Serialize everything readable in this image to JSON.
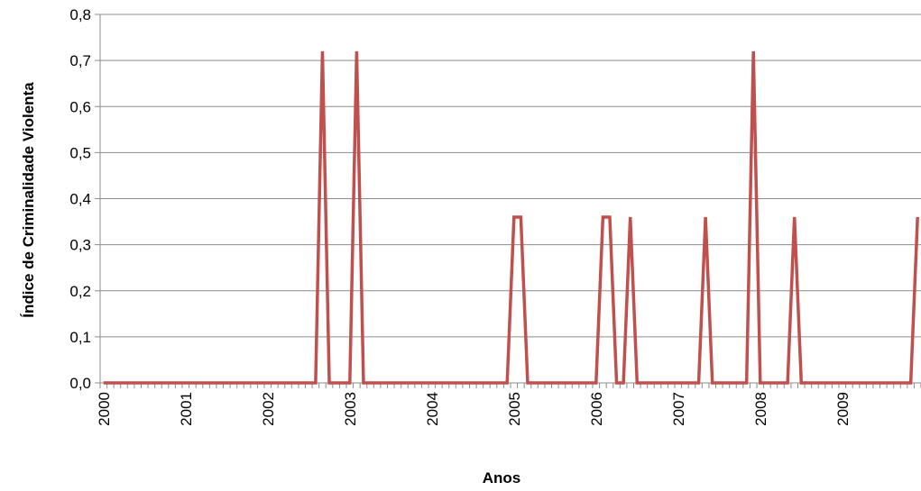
{
  "chart_data": {
    "type": "line",
    "title": "",
    "xlabel": "Anos",
    "ylabel": "Índice de Criminalidade Violenta",
    "ylim": [
      0,
      0.8
    ],
    "yticks": [
      "0,0",
      "0,1",
      "0,2",
      "0,3",
      "0,4",
      "0,5",
      "0,6",
      "0,7",
      "0,8"
    ],
    "x_tick_labels": [
      "2000",
      "2001",
      "2002",
      "2003",
      "2004",
      "2005",
      "2006",
      "2007",
      "2008",
      "2009"
    ],
    "x_unit": "month",
    "grid": true,
    "legend": "none",
    "series": [
      {
        "color": "#c0504d",
        "points": [
          [
            "2000-01",
            0
          ],
          [
            "2002-08",
            0
          ],
          [
            "2002-09",
            0.72
          ],
          [
            "2002-10",
            0
          ],
          [
            "2003-01",
            0
          ],
          [
            "2003-02",
            0.72
          ],
          [
            "2003-03",
            0
          ],
          [
            "2004-12",
            0
          ],
          [
            "2005-01",
            0.36
          ],
          [
            "2005-02",
            0.36
          ],
          [
            "2005-03",
            0
          ],
          [
            "2006-01",
            0
          ],
          [
            "2006-02",
            0.36
          ],
          [
            "2006-03",
            0.36
          ],
          [
            "2006-04",
            0
          ],
          [
            "2006-05",
            0
          ],
          [
            "2006-06",
            0.36
          ],
          [
            "2006-07",
            0
          ],
          [
            "2007-04",
            0
          ],
          [
            "2007-05",
            0.36
          ],
          [
            "2007-06",
            0
          ],
          [
            "2007-11",
            0
          ],
          [
            "2007-12",
            0.72
          ],
          [
            "2008-01",
            0
          ],
          [
            "2008-05",
            0
          ],
          [
            "2008-06",
            0.36
          ],
          [
            "2008-07",
            0
          ],
          [
            "2009-11",
            0
          ],
          [
            "2009-12",
            0.36
          ]
        ]
      }
    ]
  }
}
